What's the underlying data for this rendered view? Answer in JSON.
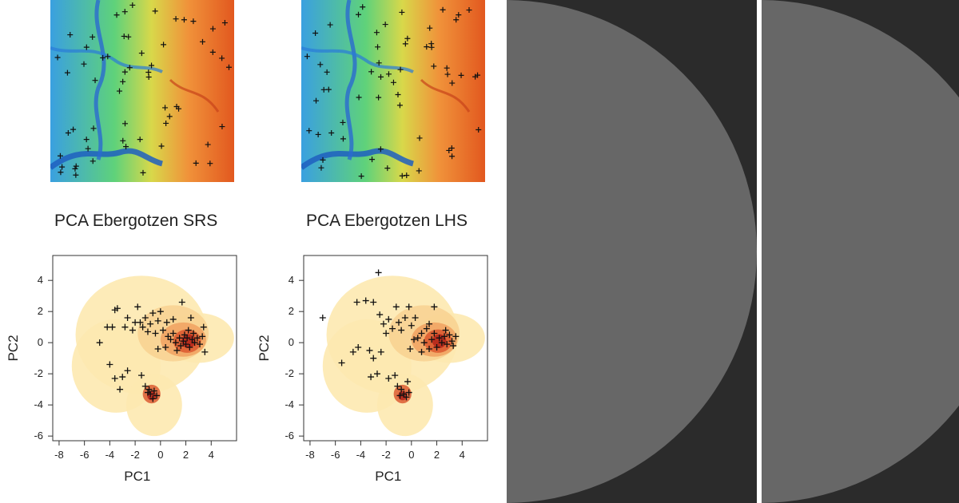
{
  "titles": {
    "left": "PCA Ebergotzen SRS",
    "right": "PCA Ebergotzen LHS"
  },
  "colors": {
    "map_low": "#1f5fbf",
    "map_mid": "#49d07a",
    "map_high": "#e0501e",
    "density_low": "#fde9b0",
    "density_high": "#b5271b",
    "marker": "#111111",
    "dark_panel": "#2b2b2b",
    "half_disc": "#676767"
  },
  "chart_data": [
    {
      "type": "scatter",
      "title": "PCA Ebergotzen SRS",
      "xlabel": "PC1",
      "ylabel": "PC2",
      "xlim": [
        -8.5,
        6
      ],
      "ylim": [
        -6.3,
        5.6
      ],
      "xticks": [
        -8,
        -6,
        -4,
        -2,
        0,
        2,
        4
      ],
      "yticks": [
        -6,
        -4,
        -2,
        0,
        2,
        4
      ],
      "background": "density cloud of all pixels",
      "series": [
        {
          "marker": "+",
          "points": [
            [
              -4.8,
              0.0
            ],
            [
              -4.2,
              1.0
            ],
            [
              -3.8,
              1.0
            ],
            [
              -3.6,
              2.1
            ],
            [
              -3.4,
              2.2
            ],
            [
              -2.8,
              1.0
            ],
            [
              -2.6,
              1.6
            ],
            [
              -2.2,
              0.8
            ],
            [
              -2.0,
              1.3
            ],
            [
              -1.8,
              2.3
            ],
            [
              -1.6,
              1.3
            ],
            [
              -1.4,
              1.0
            ],
            [
              -1.2,
              1.6
            ],
            [
              -1.0,
              0.7
            ],
            [
              -0.8,
              1.2
            ],
            [
              -0.6,
              1.9
            ],
            [
              -0.4,
              0.6
            ],
            [
              -0.2,
              1.4
            ],
            [
              0.0,
              2.0
            ],
            [
              0.2,
              0.8
            ],
            [
              0.5,
              1.3
            ],
            [
              0.8,
              0.2
            ],
            [
              1.0,
              0.6
            ],
            [
              1.2,
              0.0
            ],
            [
              1.3,
              -0.5
            ],
            [
              1.5,
              0.3
            ],
            [
              1.6,
              -0.2
            ],
            [
              1.8,
              0.1
            ],
            [
              1.9,
              0.5
            ],
            [
              2.0,
              -0.1
            ],
            [
              2.1,
              0.3
            ],
            [
              2.2,
              0.8
            ],
            [
              2.3,
              -0.3
            ],
            [
              2.5,
              0.2
            ],
            [
              2.7,
              0.0
            ],
            [
              2.9,
              0.3
            ],
            [
              3.1,
              -0.1
            ],
            [
              3.3,
              0.4
            ],
            [
              3.5,
              -0.6
            ],
            [
              1.0,
              1.5
            ],
            [
              1.7,
              2.6
            ],
            [
              2.4,
              1.6
            ],
            [
              3.4,
              1.0
            ],
            [
              -4.0,
              -1.4
            ],
            [
              -3.6,
              -2.3
            ],
            [
              -3.2,
              -3.0
            ],
            [
              -3.0,
              -2.2
            ],
            [
              -2.6,
              -1.8
            ],
            [
              -1.5,
              -2.1
            ],
            [
              -1.2,
              -2.8
            ],
            [
              -0.9,
              -3.0
            ],
            [
              -0.8,
              -3.3
            ],
            [
              -0.6,
              -3.6
            ],
            [
              -0.5,
              -3.1
            ],
            [
              -1.0,
              -3.2
            ],
            [
              -0.3,
              -3.4
            ],
            [
              0.4,
              -0.3
            ],
            [
              0.6,
              0.4
            ],
            [
              -0.2,
              -0.4
            ],
            [
              2.6,
              0.6
            ]
          ]
        }
      ]
    },
    {
      "type": "scatter",
      "title": "PCA Ebergotzen LHS",
      "xlabel": "PC1",
      "ylabel": "PC2",
      "xlim": [
        -8.5,
        6
      ],
      "ylim": [
        -6.3,
        5.6
      ],
      "xticks": [
        -8,
        -6,
        -4,
        -2,
        0,
        2,
        4
      ],
      "yticks": [
        -6,
        -4,
        -2,
        0,
        2,
        4
      ],
      "background": "density cloud of all pixels",
      "series": [
        {
          "marker": "+",
          "points": [
            [
              -7.0,
              1.6
            ],
            [
              -5.5,
              -1.3
            ],
            [
              -4.6,
              -0.6
            ],
            [
              -4.2,
              -0.3
            ],
            [
              -4.3,
              2.6
            ],
            [
              -3.6,
              2.7
            ],
            [
              -3.0,
              2.6
            ],
            [
              -2.5,
              1.8
            ],
            [
              -2.6,
              4.5
            ],
            [
              -2.2,
              1.2
            ],
            [
              -2.0,
              0.6
            ],
            [
              -1.8,
              1.5
            ],
            [
              -1.5,
              0.9
            ],
            [
              -1.2,
              2.3
            ],
            [
              -1.0,
              1.3
            ],
            [
              -0.8,
              0.8
            ],
            [
              -0.5,
              1.6
            ],
            [
              -0.2,
              2.3
            ],
            [
              0.0,
              1.1
            ],
            [
              0.3,
              1.6
            ],
            [
              0.5,
              0.3
            ],
            [
              0.8,
              0.6
            ],
            [
              1.0,
              0.0
            ],
            [
              1.2,
              0.9
            ],
            [
              1.4,
              -0.4
            ],
            [
              1.6,
              0.2
            ],
            [
              1.8,
              0.6
            ],
            [
              2.0,
              -0.3
            ],
            [
              2.2,
              0.3
            ],
            [
              2.4,
              0.0
            ],
            [
              2.6,
              0.4
            ],
            [
              2.8,
              -0.1
            ],
            [
              3.0,
              0.5
            ],
            [
              3.2,
              0.1
            ],
            [
              3.5,
              0.4
            ],
            [
              1.4,
              1.2
            ],
            [
              1.8,
              2.3
            ],
            [
              3.3,
              -0.2
            ],
            [
              -3.3,
              -0.5
            ],
            [
              -3.0,
              -1.0
            ],
            [
              -2.4,
              -0.6
            ],
            [
              -3.2,
              -2.2
            ],
            [
              -2.7,
              -2.0
            ],
            [
              -1.8,
              -2.3
            ],
            [
              -1.3,
              -2.1
            ],
            [
              -1.1,
              -2.8
            ],
            [
              -0.8,
              -3.0
            ],
            [
              -0.6,
              -3.3
            ],
            [
              -0.4,
              -3.5
            ],
            [
              -0.9,
              -3.4
            ],
            [
              -0.2,
              -3.2
            ],
            [
              -0.3,
              -2.5
            ],
            [
              0.2,
              0.2
            ],
            [
              -0.1,
              -0.4
            ],
            [
              2.7,
              0.8
            ],
            [
              0.8,
              -0.6
            ]
          ]
        }
      ]
    }
  ]
}
